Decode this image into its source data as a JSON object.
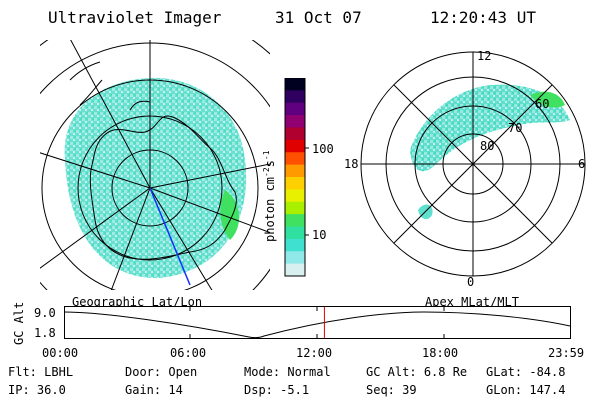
{
  "header": {
    "instrument": "Ultraviolet Imager",
    "date": "31 Oct 07",
    "time": "12:20:43 UT"
  },
  "left_panel": {
    "label": "Geographic Lat/Lon"
  },
  "colorbar": {
    "unit_label": "photon cm",
    "unit_exp1": "-2",
    "unit_s": "s",
    "unit_exp2": "-1",
    "ticks": [
      "100",
      "10"
    ],
    "colors": [
      "#000020",
      "#300060",
      "#600080",
      "#900070",
      "#b00030",
      "#e00000",
      "#ff5000",
      "#ff9a00",
      "#ffd000",
      "#e8f000",
      "#a8f000",
      "#40e060",
      "#30e0a0",
      "#40e0d0",
      "#90e8e8",
      "#d8f0f0"
    ]
  },
  "right_panel": {
    "label": "Apex MLat/MLT",
    "mlt_labels": {
      "top": "12",
      "left": "18",
      "right": "6",
      "bottom": "0"
    },
    "mlat_labels": [
      "80",
      "70",
      "60"
    ]
  },
  "timeline": {
    "ylabel": "GC Alt",
    "y_ticks": [
      "9.0",
      "1.8"
    ],
    "x_ticks": [
      "00:00",
      "06:00",
      "12:00",
      "18:00",
      "23:59"
    ],
    "current_marker_hour": 12.35
  },
  "footer": {
    "row1": [
      {
        "key": "Flt:",
        "value": "LBHL"
      },
      {
        "key": "Door:",
        "value": "Open"
      },
      {
        "key": "Mode:",
        "value": "Normal"
      },
      {
        "key": "GC Alt:",
        "value": "6.8 Re"
      },
      {
        "key": "GLat:",
        "value": "-84.8"
      }
    ],
    "row2": [
      {
        "key": "IP:",
        "value": "36.0"
      },
      {
        "key": "Gain:",
        "value": "14"
      },
      {
        "key": "Dsp:",
        "value": "-5.1"
      },
      {
        "key": "Seq:",
        "value": "39"
      },
      {
        "key": "GLon:",
        "value": "147.4"
      }
    ]
  }
}
